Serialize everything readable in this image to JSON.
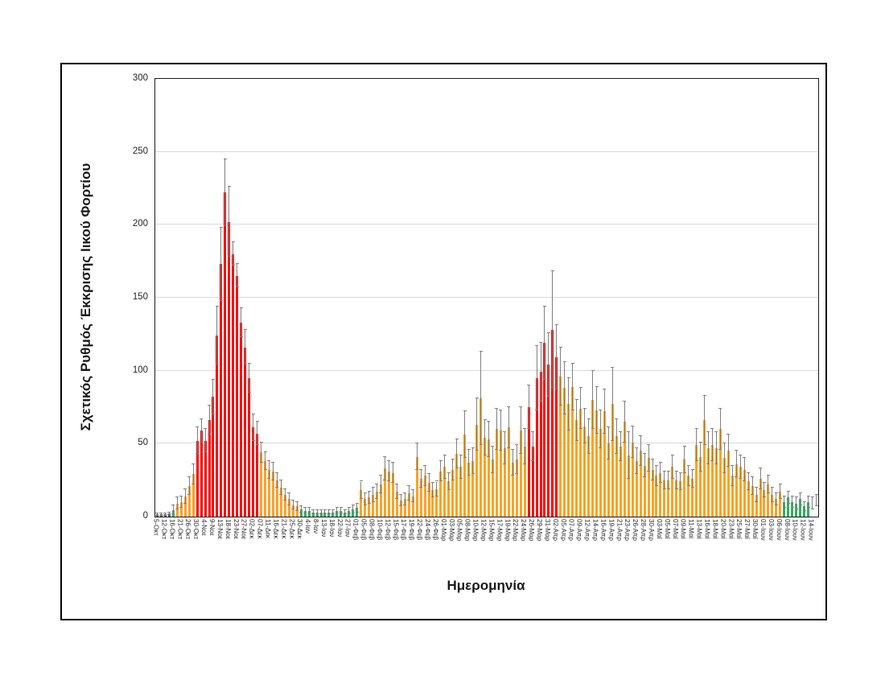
{
  "chart_data": {
    "type": "bar",
    "title": "",
    "xlabel": "Ημερομηνία",
    "ylabel": "Σχετικός Ρυθμός Έκκρισης Ιικού Φορτίου",
    "ylim": [
      0,
      300
    ],
    "y_tick_labels": [
      "0",
      "50",
      "100",
      "150",
      "200",
      "250",
      "300"
    ],
    "grid": "horizontal",
    "legend_position": "none",
    "bars_per_label": 2,
    "x_tick_labels": [
      "5-Οκτ",
      "12-Οκτ",
      "16-Οκτ",
      "21-Οκτ",
      "26-Οκτ",
      "30-Οκτ",
      "4-Νοε",
      "9-Νοε",
      "13-Νοε",
      "18-Νοε",
      "23-Νοε",
      "27-Νοε",
      "02-Δεκ",
      "07-Δεκ",
      "11-Δεκ",
      "16-Δεκ",
      "21-Δεκ",
      "25-Δεκ",
      "30-Δεκ",
      "4-Ιαν",
      "8-Ιαν",
      "13-Ιαν",
      "18-Ιαν",
      "22-Ιαν",
      "27-Ιαν",
      "01-Φεβ",
      "05-Φεβ",
      "08-Φεβ",
      "10-Φεβ",
      "12-Φεβ",
      "15-Φεβ",
      "17-Φεβ",
      "19-Φεβ",
      "22-Φεβ",
      "24-Φεβ",
      "26-Φεβ",
      "01-Μαρ",
      "03-Μαρ",
      "05-Μαρ",
      "08-Μαρ",
      "10-Μαρ",
      "12-Μαρ",
      "15-Μαρ",
      "17-Μαρ",
      "19-Μαρ",
      "22-Μαρ",
      "24-Μαρ",
      "26-Μαρ",
      "29-Μαρ",
      "31-Μαρ",
      "02-Απρ",
      "05-Απρ",
      "07-Απρ",
      "09-Απρ",
      "12-Απρ",
      "14-Απρ",
      "16-Απρ",
      "19-Απρ",
      "21-Απρ",
      "23-Απρ",
      "26-Απρ",
      "28-Απρ",
      "30-Απρ",
      "03-Μαϊ",
      "05-Μαϊ",
      "07-Μαϊ",
      "09-Μαϊ",
      "11-Μαϊ",
      "13-Μαϊ",
      "16-Μαϊ",
      "18-Μαϊ",
      "20-Μαϊ",
      "23-Μαϊ",
      "25-Μαϊ",
      "27-Μαϊ",
      "30-Μαϊ",
      "01-Ιουν",
      "03-Ιουν",
      "06-Ιουν",
      "08-Ιουν",
      "10-Ιουν",
      "12-Ιουν",
      "14-Ιουν"
    ],
    "values": [
      1.5,
      1.5,
      1.5,
      2,
      4.5,
      9,
      10,
      14,
      21,
      29,
      52,
      59,
      52,
      66,
      82,
      124,
      173,
      222,
      202,
      180,
      165,
      133,
      116,
      95,
      61,
      57,
      44,
      38,
      32,
      31,
      25,
      20,
      15,
      12,
      8,
      7,
      5,
      4,
      4,
      3,
      3,
      3,
      3,
      3,
      3,
      4,
      4,
      3,
      4,
      5,
      6,
      18,
      12,
      13,
      15,
      17,
      22,
      33,
      31,
      30,
      17,
      11,
      12,
      16,
      14,
      41,
      26,
      28,
      23,
      18,
      19,
      31,
      34,
      24,
      32,
      43,
      34,
      56,
      37,
      38,
      63,
      81,
      54,
      53,
      39,
      60,
      59,
      47,
      61,
      37,
      39,
      59,
      48,
      75,
      48,
      95,
      99,
      119,
      104,
      128,
      109,
      96,
      88,
      77,
      89,
      66,
      74,
      62,
      55,
      80,
      73,
      60,
      72,
      50,
      77,
      55,
      48,
      65,
      42,
      51,
      38,
      45,
      35,
      40,
      32,
      28,
      30,
      25,
      25,
      34,
      25,
      24,
      39,
      28,
      26,
      49,
      41,
      66,
      47,
      49,
      47,
      60,
      40,
      45,
      28,
      36,
      34,
      32,
      24,
      21,
      15,
      26,
      18,
      22,
      15,
      12,
      17,
      10,
      13,
      10,
      9,
      12,
      7,
      10,
      9,
      11
    ],
    "errors": [
      0.8,
      0.8,
      0.8,
      1,
      3,
      4,
      4,
      5,
      6,
      7,
      9,
      8,
      8,
      10,
      12,
      20,
      25,
      23,
      24,
      8,
      8,
      10,
      12,
      10,
      9,
      8,
      7,
      6,
      6,
      6,
      5,
      5,
      4,
      4,
      3,
      3,
      2,
      2,
      2,
      1.5,
      1.5,
      1.5,
      1.5,
      1.5,
      1.5,
      2,
      2,
      1.5,
      2,
      2.5,
      3,
      6,
      4,
      4,
      5,
      5,
      6,
      8,
      7,
      7,
      5,
      4,
      4,
      5,
      4,
      9,
      6,
      7,
      6,
      5,
      5,
      7,
      8,
      6,
      7,
      10,
      8,
      16,
      9,
      9,
      18,
      32,
      12,
      12,
      9,
      14,
      14,
      11,
      14,
      9,
      10,
      16,
      12,
      15,
      10,
      22,
      20,
      25,
      22,
      40,
      22,
      20,
      18,
      18,
      16,
      14,
      14,
      12,
      12,
      20,
      16,
      13,
      15,
      11,
      25,
      12,
      10,
      14,
      16,
      11,
      9,
      10,
      8,
      9,
      7,
      7,
      7,
      6,
      6,
      8,
      6,
      6,
      9,
      7,
      6,
      11,
      10,
      17,
      11,
      11,
      11,
      14,
      10,
      11,
      7,
      9,
      8,
      8,
      6,
      6,
      5,
      7,
      5,
      6,
      5,
      4,
      5,
      4,
      4,
      4,
      4,
      4,
      3,
      4,
      4,
      4
    ],
    "bar_colors": "ggggGOOOOORRRRRRRRRRRRRRRROOOOOOOOOOGGGGGGGGGGGGGGGOOOOOOOOOOOOOOOOOOOOOOOOOOOOOOOOOOOOOOOOOORRRRRRRROOOOOOOOOOOOOOOOOOOOOOOOOOOOOOOOOOOOOOOOOOOOOOOOOOOOOOOOGGGGGGG",
    "color_map": {
      "g": "#545454",
      "G": "#2eaf5d",
      "O": "#fba227",
      "R": "#fe0000"
    },
    "error_bar_color": "#808080",
    "gridline_color": "#d9d9d9"
  },
  "figure": {
    "y_axis_title": "Σχετικός Ρυθμός Έκκρισης Ιικού Φορτίου",
    "x_axis_title": "Ημερομηνία"
  }
}
